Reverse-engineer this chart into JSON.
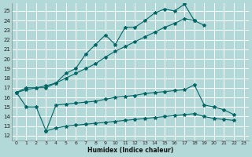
{
  "xlabel": "Humidex (Indice chaleur)",
  "bg_color": "#b2d8d8",
  "grid_color": "#ffffff",
  "line_color": "#006666",
  "xlim": [
    -0.5,
    23.5
  ],
  "ylim": [
    11.5,
    25.8
  ],
  "yticks": [
    12,
    13,
    14,
    15,
    16,
    17,
    18,
    19,
    20,
    21,
    22,
    23,
    24,
    25
  ],
  "xticks": [
    0,
    1,
    2,
    3,
    4,
    5,
    6,
    7,
    8,
    9,
    10,
    11,
    12,
    13,
    14,
    15,
    16,
    17,
    18,
    19,
    20,
    21,
    22,
    23
  ],
  "line1_x": [
    0,
    1,
    2,
    3,
    4,
    5,
    6,
    7,
    8,
    9,
    10,
    11,
    12,
    13,
    14,
    15,
    16,
    17,
    18,
    19
  ],
  "line1_y": [
    16.5,
    17.0,
    17.0,
    17.0,
    17.5,
    18.5,
    19.0,
    20.5,
    21.5,
    22.5,
    21.5,
    23.3,
    23.3,
    24.0,
    24.8,
    25.2,
    25.0,
    25.7,
    24.0,
    23.5
  ],
  "line2_x": [
    0,
    1,
    2,
    3,
    4,
    5,
    6,
    7,
    8,
    9,
    10,
    11,
    12,
    13,
    14,
    15,
    16,
    17,
    18
  ],
  "line2_y": [
    16.5,
    16.8,
    17.0,
    17.2,
    17.5,
    18.0,
    18.5,
    19.0,
    19.5,
    20.2,
    20.8,
    21.3,
    21.8,
    22.3,
    22.8,
    23.3,
    23.7,
    24.2,
    24.0
  ],
  "line3_x": [
    0,
    1,
    2,
    3,
    4,
    5,
    6,
    7,
    8,
    9,
    10,
    11,
    12,
    13,
    14,
    15,
    16,
    17,
    18,
    19,
    20,
    21,
    22
  ],
  "line3_y": [
    16.5,
    15.0,
    15.0,
    12.5,
    15.2,
    15.3,
    15.4,
    15.5,
    15.6,
    15.8,
    16.0,
    16.1,
    16.2,
    16.4,
    16.5,
    16.6,
    16.7,
    16.8,
    17.3,
    15.2,
    15.0,
    14.7,
    14.2
  ],
  "line4_x": [
    3,
    4,
    5,
    6,
    7,
    8,
    9,
    10,
    11,
    12,
    13,
    14,
    15,
    16,
    17,
    18,
    19,
    20,
    21,
    22
  ],
  "line4_y": [
    12.5,
    12.8,
    13.0,
    13.1,
    13.2,
    13.3,
    13.4,
    13.5,
    13.6,
    13.7,
    13.8,
    13.9,
    14.0,
    14.1,
    14.2,
    14.3,
    14.0,
    13.8,
    13.7,
    13.6
  ]
}
